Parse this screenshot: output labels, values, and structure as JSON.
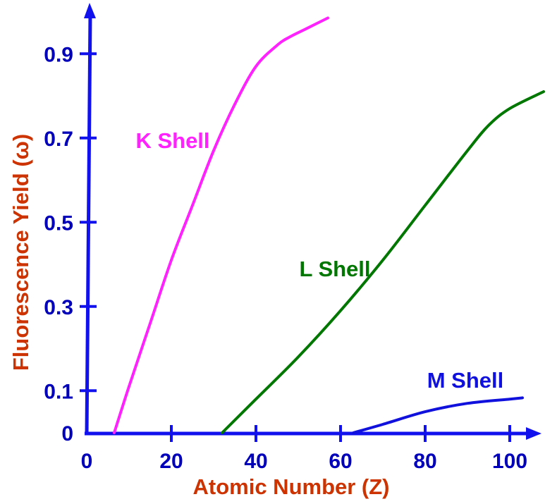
{
  "chart_data": {
    "type": "line",
    "title": "",
    "xlabel": "Atomic Number (Z)",
    "ylabel": "Fluorescence Yield (ω)",
    "xlim": [
      0,
      105
    ],
    "ylim": [
      0,
      1.0
    ],
    "x_ticks": [
      0,
      20,
      40,
      60,
      80,
      100
    ],
    "x_tick_labels": [
      "0",
      "20",
      "40",
      "60",
      "80",
      "100"
    ],
    "y_ticks": [
      0,
      0.1,
      0.3,
      0.5,
      0.7,
      0.9
    ],
    "y_tick_labels": [
      "0",
      "0.1",
      "0.3",
      "0.5",
      "0.7",
      "0.9"
    ],
    "grid": false,
    "series": [
      {
        "name": "K Shell",
        "color": "#ff22ff",
        "x": [
          6.5,
          10,
          15,
          20,
          25,
          30,
          35,
          40,
          45,
          48,
          52,
          57
        ],
        "y": [
          0.0,
          0.11,
          0.26,
          0.41,
          0.54,
          0.67,
          0.78,
          0.87,
          0.92,
          0.94,
          0.96,
          0.985
        ]
      },
      {
        "name": "L Shell",
        "color": "#007700",
        "x": [
          32,
          40,
          50,
          60,
          70,
          80,
          90,
          95,
          100,
          108
        ],
        "y": [
          0.0,
          0.08,
          0.18,
          0.29,
          0.41,
          0.54,
          0.67,
          0.73,
          0.77,
          0.81
        ]
      },
      {
        "name": "M Shell",
        "color": "#1111dd",
        "x": [
          63,
          70,
          80,
          90,
          100,
          103
        ],
        "y": [
          0.0,
          0.02,
          0.05,
          0.07,
          0.08,
          0.083
        ]
      }
    ],
    "series_label_positions": [
      "upper-left of curve",
      "middle-right of curve",
      "above curve end"
    ],
    "colors": {
      "axis": "#1111ee",
      "tick_label": "#0000bb",
      "axis_title": "#cc3300"
    }
  }
}
